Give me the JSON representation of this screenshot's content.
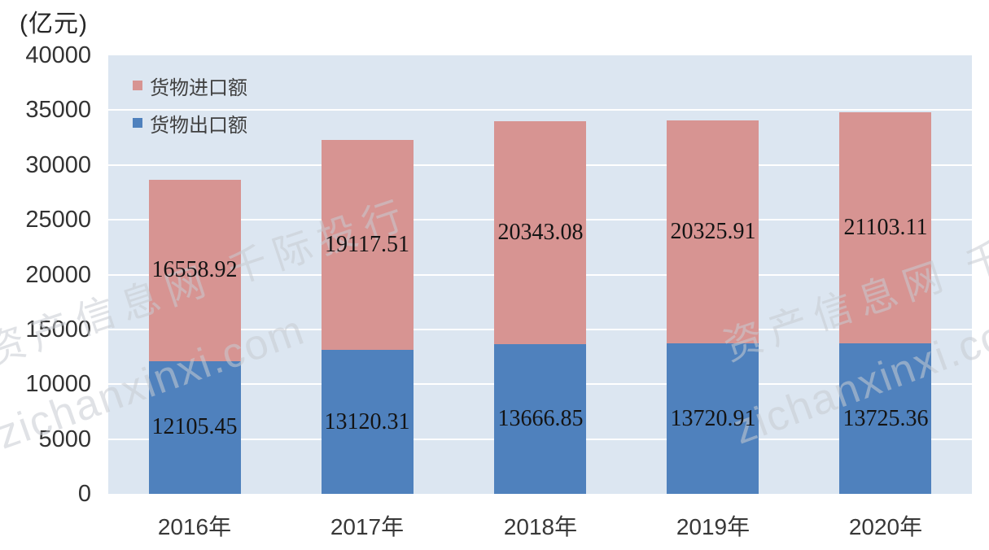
{
  "figure": {
    "unit_label": "(亿元)"
  },
  "chart_data": {
    "type": "bar",
    "stacked": true,
    "title": "",
    "xlabel": "",
    "ylabel": "(亿元)",
    "categories": [
      "2016年",
      "2017年",
      "2018年",
      "2019年",
      "2020年"
    ],
    "series": [
      {
        "name": "货物进口额",
        "color": "#d79492",
        "values": [
          16558.92,
          19117.51,
          20343.08,
          20325.91,
          21103.11
        ]
      },
      {
        "name": "货物出口额",
        "color": "#4f81bd",
        "values": [
          12105.45,
          13120.31,
          13666.85,
          13720.91,
          13725.36
        ]
      }
    ],
    "stack_bottom_to_top": [
      "货物出口额",
      "货物进口额"
    ],
    "ylim": [
      0,
      40000
    ],
    "ytick_step": 5000,
    "yticks": [
      "40000",
      "35000",
      "30000",
      "25000",
      "20000",
      "15000",
      "10000",
      "5000",
      "0"
    ],
    "value_label_decimals": 2,
    "legend_position": "top-left-inside",
    "grid": true,
    "plot_bg_color": "#dce6f1",
    "gridline_color": "#ffffff",
    "value_label_color": "#141414"
  },
  "watermark": {
    "line1": "资产信息网 千际投行",
    "line2": "zichanxinxi.com",
    "color": "#c8ccd2"
  }
}
